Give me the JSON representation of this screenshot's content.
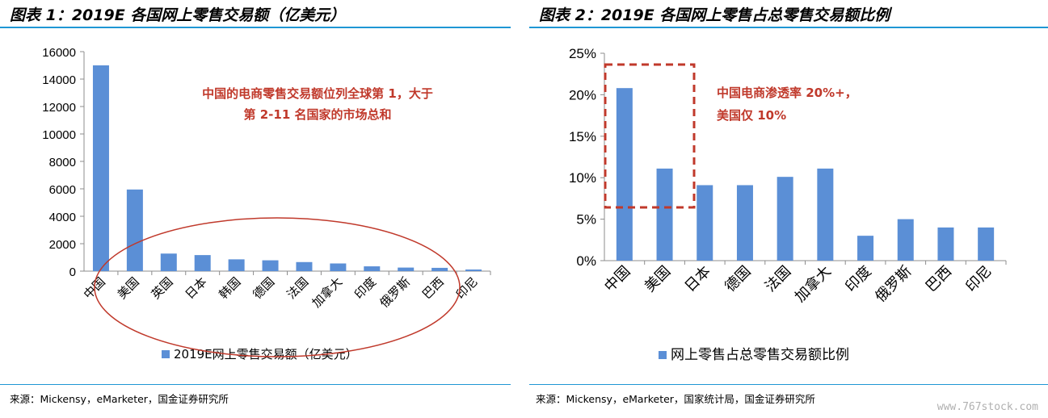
{
  "left": {
    "title": "图表 1：2019E 各国网上零售交易额（亿美元）",
    "annotation_line1": "中国的电商零售交易额位列全球第 1，大于",
    "annotation_line2": "第 2-11 名国家的市场总和",
    "source": "来源：Mickensy，eMarketer，国金证券研究所"
  },
  "right": {
    "title": "图表 2：2019E 各国网上零售占总零售交易额比例",
    "annotation_line1": "中国电商渗透率 20%+，",
    "annotation_line2": "美国仅 10%",
    "source": "来源：Mickensy，eMarketer，国家统计局，国金证券研究所"
  },
  "watermark": "www.767stock.com",
  "colors": {
    "bar": "#5b8fd6",
    "accent": "#c0392b",
    "rule": "#1f97d4"
  },
  "chart_data": [
    {
      "type": "bar",
      "categories": [
        "中国",
        "美国",
        "英国",
        "日本",
        "韩国",
        "德国",
        "法国",
        "加拿大",
        "印度",
        "俄罗斯",
        "巴西",
        "印尼"
      ],
      "series": [
        {
          "name": "2019E网上零售交易额（亿美元）",
          "values": [
            15000,
            5950,
            1280,
            1170,
            860,
            790,
            660,
            560,
            350,
            260,
            240,
            120
          ]
        }
      ],
      "ylim": [
        0,
        16000
      ],
      "yticks": [
        "0",
        "2000",
        "4000",
        "6000",
        "8000",
        "10000",
        "12000",
        "14000",
        "16000"
      ],
      "legend": "bottom",
      "grid": false
    },
    {
      "type": "bar",
      "categories": [
        "中国",
        "美国",
        "日本",
        "德国",
        "法国",
        "加拿大",
        "印度",
        "俄罗斯",
        "巴西",
        "印尼"
      ],
      "series": [
        {
          "name": "网上零售占总零售交易额比例",
          "values": [
            20.8,
            11.1,
            9.1,
            9.1,
            10.1,
            11.1,
            3.0,
            5.0,
            4.0,
            4.0
          ]
        }
      ],
      "ylim": [
        0,
        25
      ],
      "yticks": [
        "0%",
        "5%",
        "10%",
        "15%",
        "20%",
        "25%"
      ],
      "legend": "bottom",
      "grid": false
    }
  ]
}
